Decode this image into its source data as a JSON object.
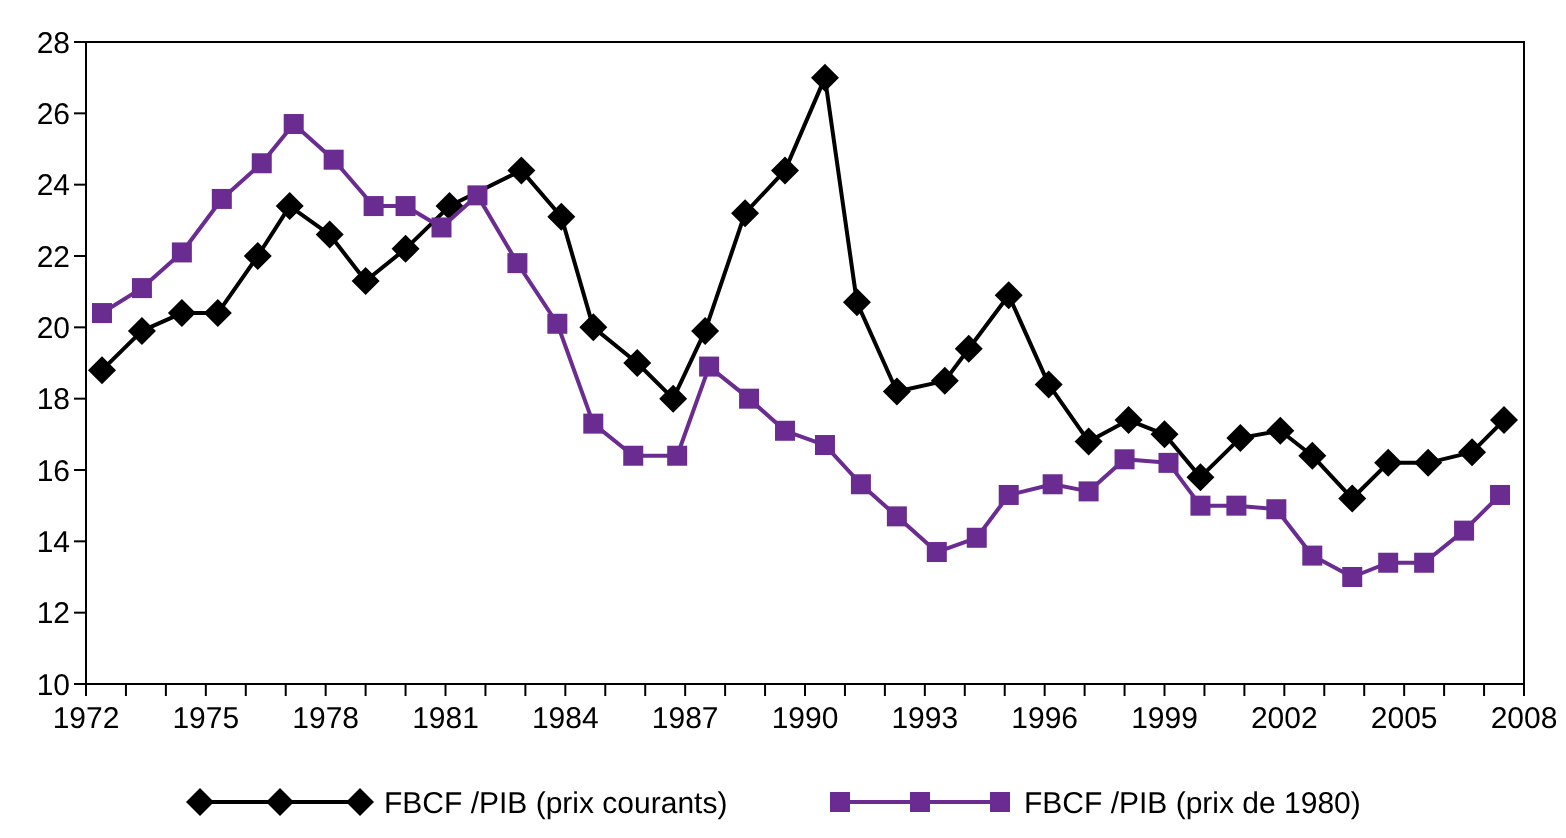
{
  "chart_data": {
    "type": "line",
    "series": [
      {
        "name": "FBCF /PIB (prix courants)",
        "color": "#000000",
        "marker": "diamond",
        "x": [
          1972.4,
          1973.4,
          1974.4,
          1975.3,
          1976.3,
          1977.1,
          1978.1,
          1979.0,
          1980.0,
          1981.1,
          1982.9,
          1983.9,
          1984.7,
          1985.8,
          1986.7,
          1987.5,
          1988.5,
          1989.5,
          1990.5,
          1991.3,
          1992.3,
          1993.5,
          1994.1,
          1995.1,
          1996.1,
          1997.1,
          1998.1,
          1999.0,
          1999.9,
          2000.9,
          2001.9,
          2002.7,
          2003.7,
          2004.6,
          2005.6,
          2006.7,
          2007.5
        ],
        "values": [
          18.8,
          19.9,
          20.4,
          20.4,
          22.0,
          23.4,
          22.6,
          21.3,
          22.2,
          23.4,
          24.4,
          23.1,
          20.0,
          19.0,
          18.0,
          19.9,
          23.2,
          24.4,
          27.0,
          20.7,
          18.2,
          18.5,
          19.4,
          20.9,
          18.4,
          16.8,
          17.4,
          17.0,
          15.8,
          16.9,
          17.1,
          16.4,
          15.2,
          16.2,
          16.2,
          16.5,
          17.4
        ]
      },
      {
        "name": "FBCF /PIB (prix de 1980)",
        "color": "#6a2c91",
        "marker": "square",
        "x": [
          1972.4,
          1973.4,
          1974.4,
          1975.4,
          1976.4,
          1977.2,
          1978.2,
          1979.2,
          1980.0,
          1980.9,
          1981.8,
          1982.8,
          1983.8,
          1984.7,
          1985.7,
          1986.8,
          1987.6,
          1988.6,
          1989.5,
          1990.5,
          1991.4,
          1992.3,
          1993.3,
          1994.3,
          1995.1,
          1996.2,
          1997.1,
          1998.0,
          1999.1,
          1999.9,
          2000.8,
          2001.8,
          2002.7,
          2003.7,
          2004.6,
          2005.5,
          2006.5,
          2007.4
        ],
        "values": [
          20.4,
          21.1,
          22.1,
          23.6,
          24.6,
          25.7,
          24.7,
          23.4,
          23.4,
          22.8,
          23.7,
          21.8,
          20.1,
          17.3,
          16.4,
          16.4,
          18.9,
          18.0,
          17.1,
          16.7,
          15.6,
          14.7,
          13.7,
          14.1,
          15.3,
          15.6,
          15.4,
          16.3,
          16.2,
          15.0,
          15.0,
          14.9,
          13.6,
          13.0,
          13.4,
          13.4,
          14.3,
          15.3
        ]
      }
    ],
    "xlim": [
      1972,
      2008
    ],
    "xticks": [
      1972,
      {
        "value": 1973,
        "label": null
      },
      {
        "value": 1974,
        "label": null
      },
      1975,
      {
        "value": 1976,
        "label": null
      },
      {
        "value": 1977,
        "label": null
      },
      1978,
      {
        "value": 1979,
        "label": null
      },
      {
        "value": 1980,
        "label": null
      },
      1981,
      {
        "value": 1982,
        "label": null
      },
      {
        "value": 1983,
        "label": null
      },
      1984,
      {
        "value": 1985,
        "label": null
      },
      {
        "value": 1986,
        "label": null
      },
      1987,
      {
        "value": 1988,
        "label": null
      },
      {
        "value": 1989,
        "label": null
      },
      1990,
      {
        "value": 1991,
        "label": null
      },
      {
        "value": 1992,
        "label": null
      },
      1993,
      {
        "value": 1994,
        "label": null
      },
      {
        "value": 1995,
        "label": null
      },
      1996,
      {
        "value": 1997,
        "label": null
      },
      {
        "value": 1998,
        "label": null
      },
      1999,
      {
        "value": 2000,
        "label": null
      },
      {
        "value": 2001,
        "label": null
      },
      2002,
      {
        "value": 2003,
        "label": null
      },
      {
        "value": 2004,
        "label": null
      },
      2005,
      {
        "value": 2006,
        "label": null
      },
      {
        "value": 2007,
        "label": null
      },
      2008
    ],
    "ylim": [
      10,
      28
    ],
    "yticks": [
      10,
      12,
      14,
      16,
      18,
      20,
      22,
      24,
      26,
      28
    ],
    "grid": false,
    "legend": "bottom",
    "line_style": "solid"
  }
}
